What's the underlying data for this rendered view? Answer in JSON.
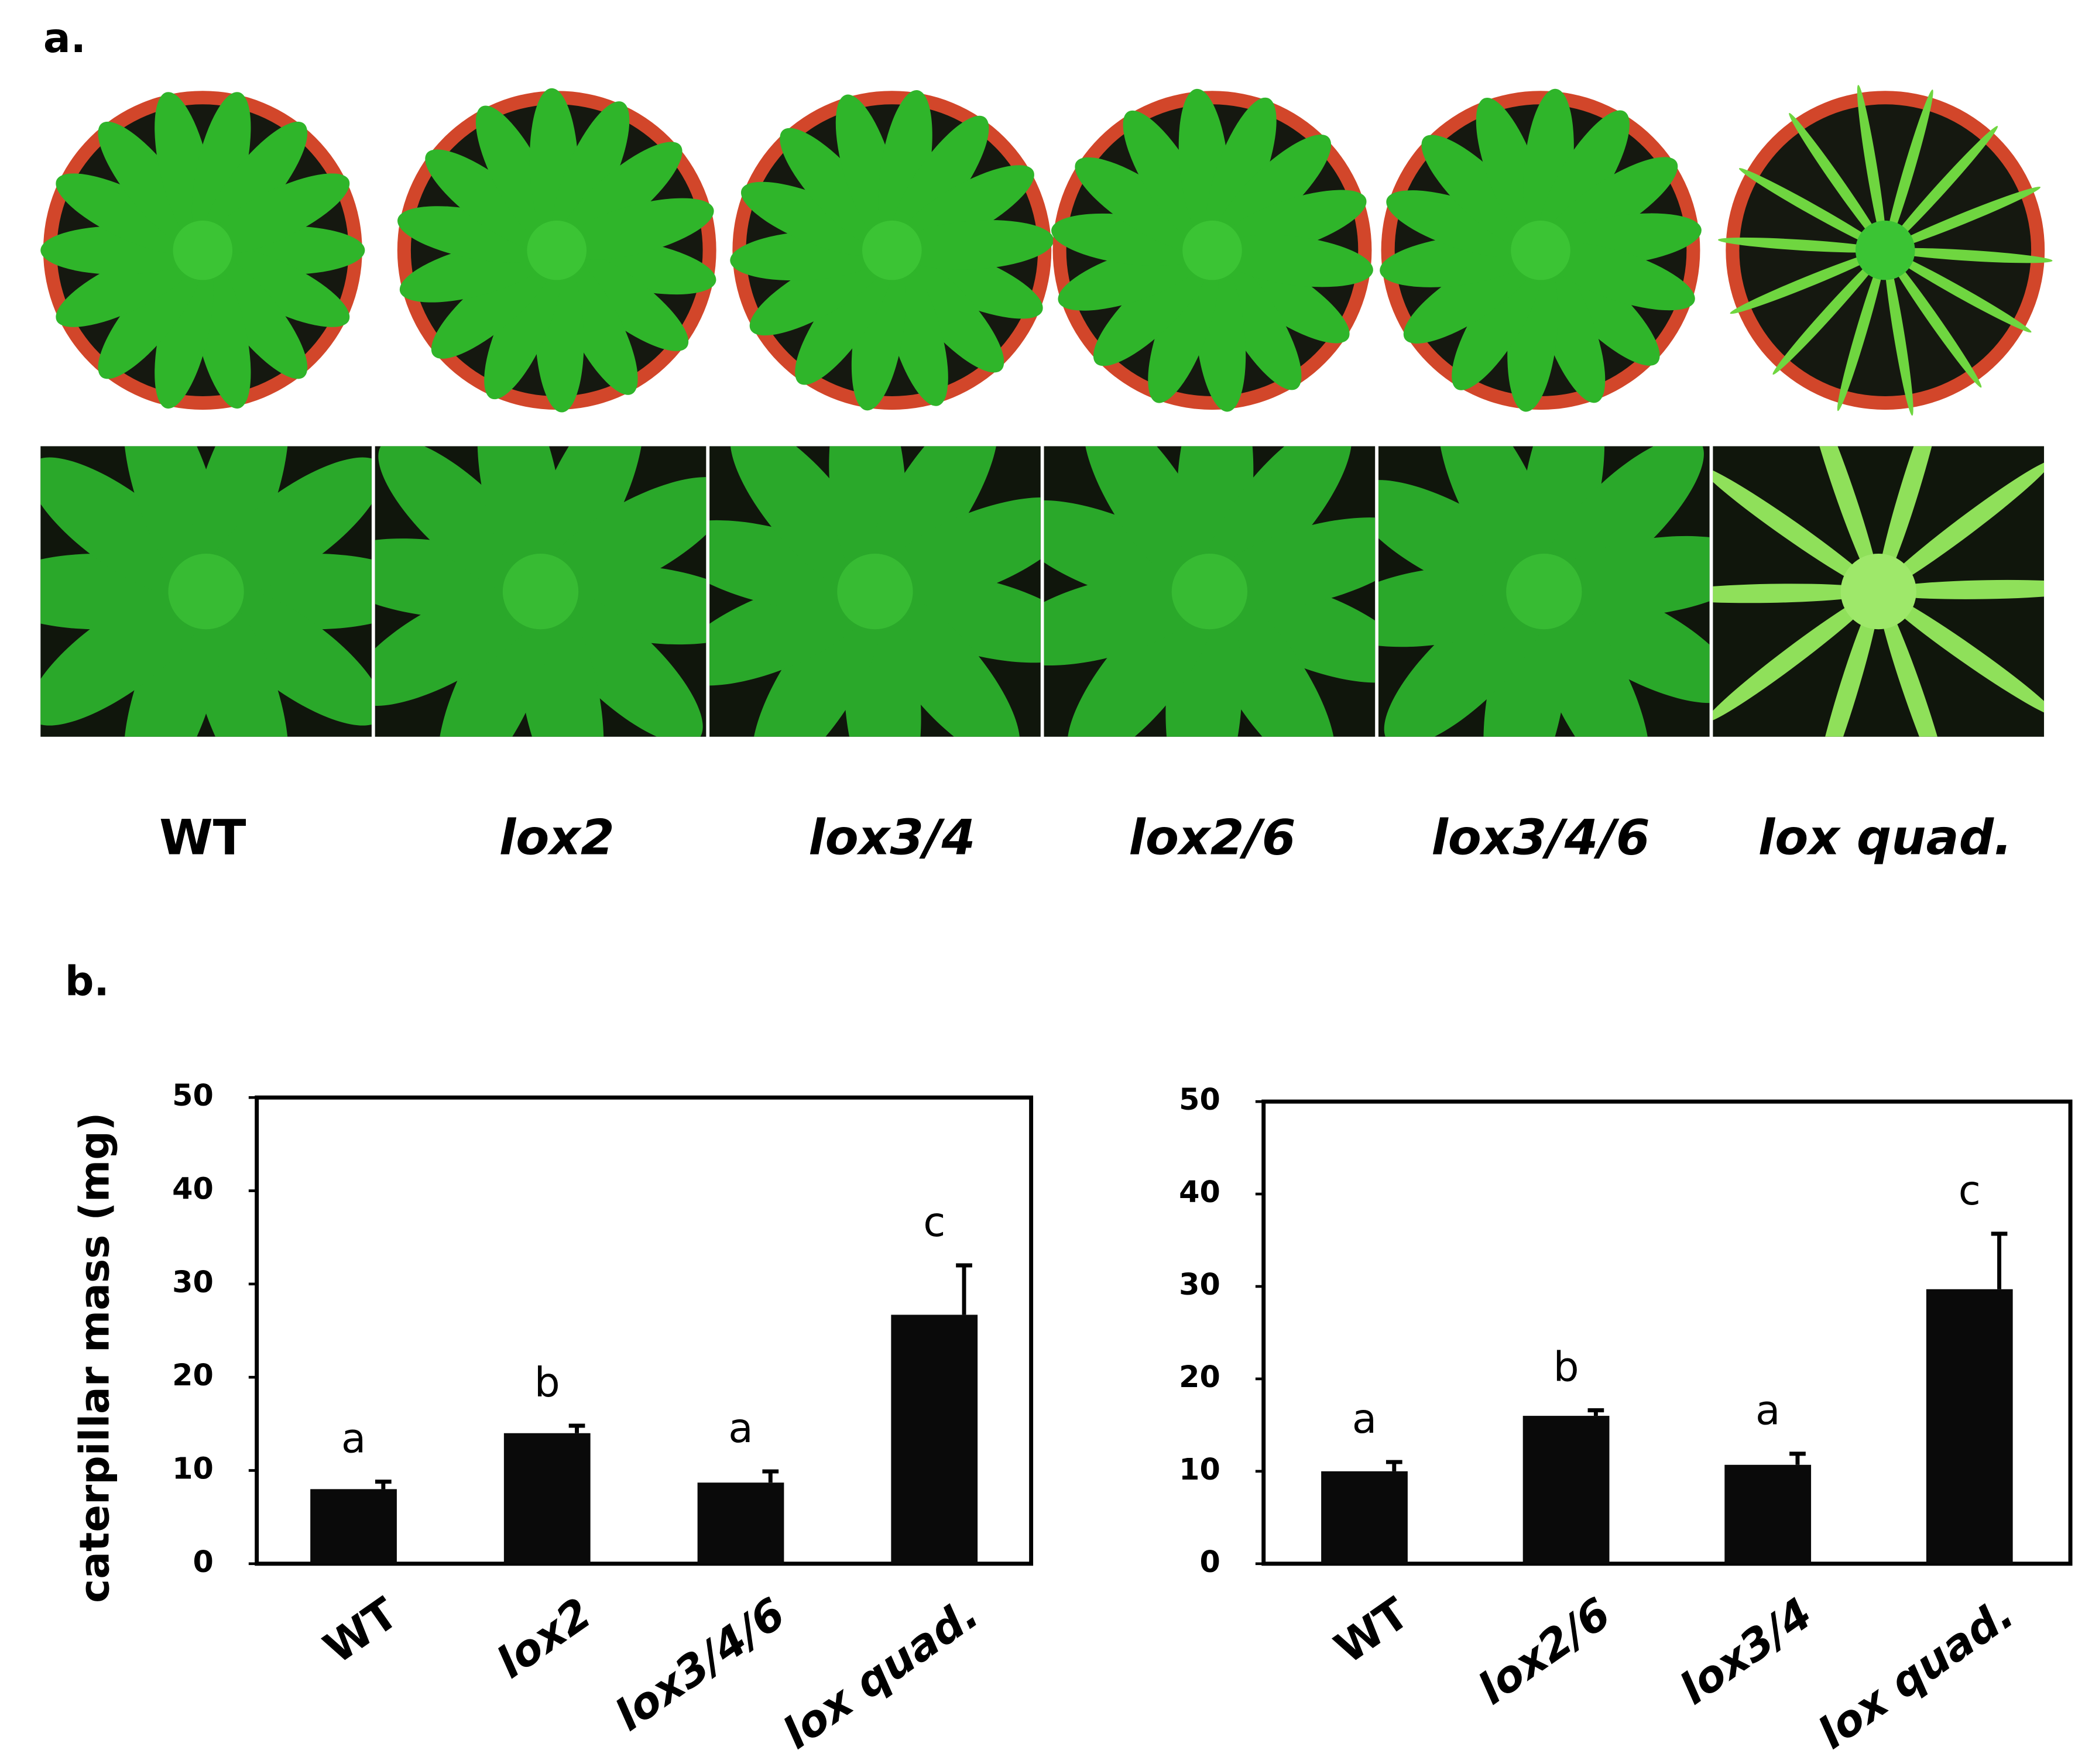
{
  "panel_a": {
    "label": "a.",
    "genotypes": [
      "WT",
      "lox2",
      "lox3/4",
      "lox2/6",
      "lox3/4/6",
      "lox quad."
    ]
  },
  "panel_b": {
    "label": "b."
  },
  "chart_data": [
    {
      "type": "bar",
      "ylabel": "caterpillar mass (mg)",
      "categories": [
        "WT",
        "lox2",
        "lox3/4/6",
        "lox quad."
      ],
      "values": [
        8,
        14,
        8.7,
        26.7
      ],
      "errors": [
        0.8,
        0.8,
        1.2,
        5.3
      ],
      "annotations": [
        "a",
        "b",
        "a",
        "c"
      ],
      "color": "#0a0a0a",
      "ylim": [
        0,
        50
      ],
      "yticks": [
        0,
        10,
        20,
        30,
        40,
        50
      ]
    },
    {
      "type": "bar",
      "categories": [
        "WT",
        "lox2/6",
        "lox3/4",
        "lox quad."
      ],
      "values": [
        10,
        16,
        10.7,
        29.7
      ],
      "errors": [
        1,
        0.6,
        1.2,
        6
      ],
      "annotations": [
        "a",
        "b",
        "a",
        "c"
      ],
      "color": "#0a0a0a",
      "ylim": [
        0,
        50
      ],
      "yticks": [
        0,
        10,
        20,
        30,
        40,
        50
      ]
    }
  ]
}
